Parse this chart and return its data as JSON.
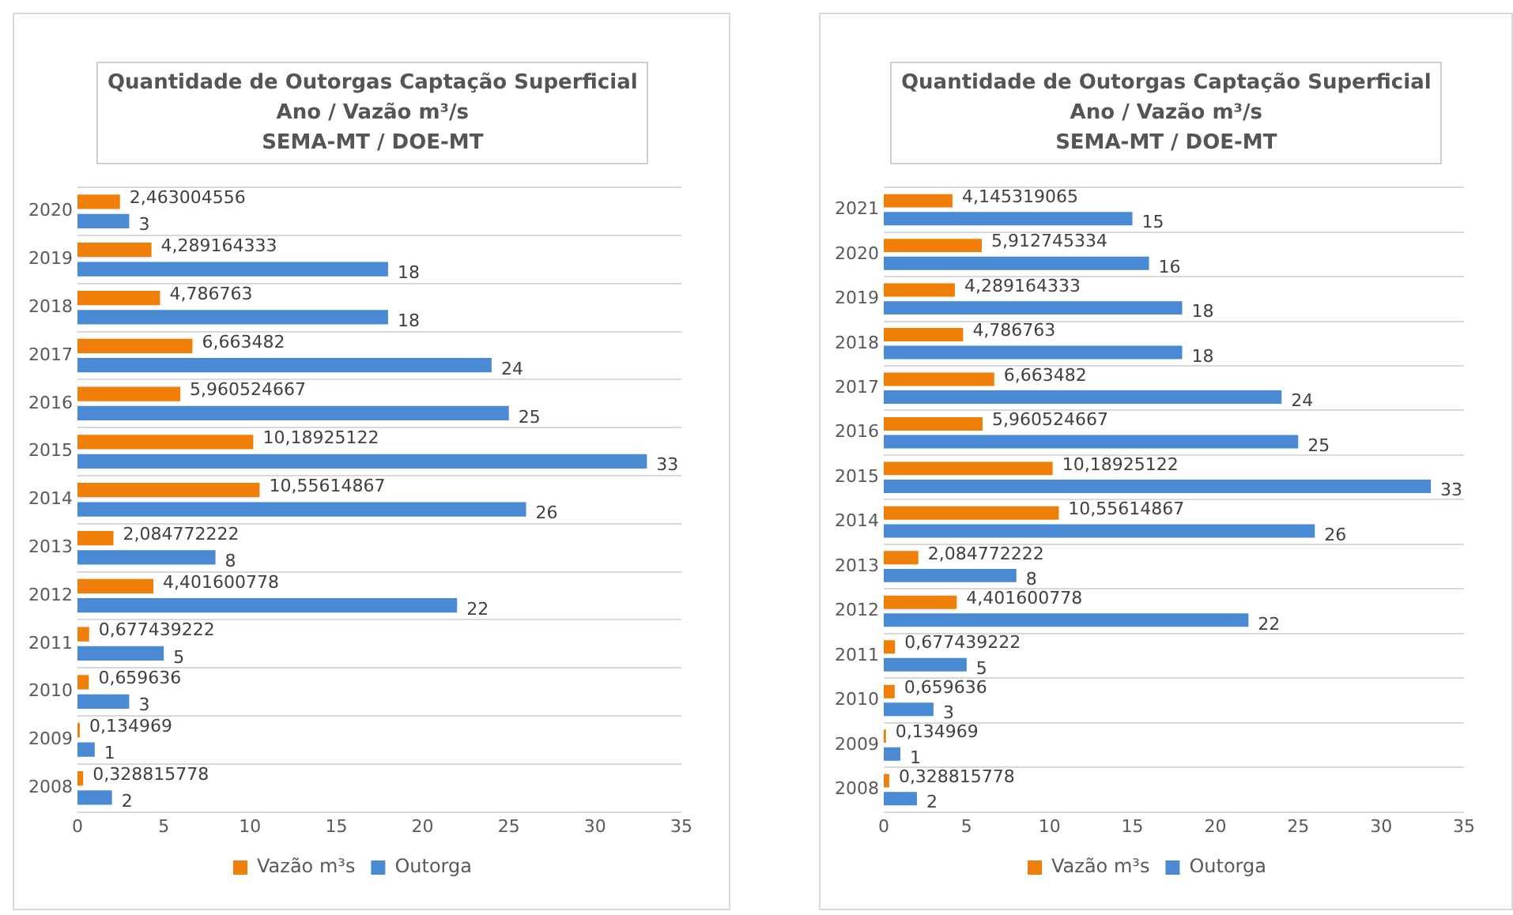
{
  "chart_data": [
    {
      "type": "bar",
      "orientation": "horizontal",
      "title": "Quantidade de Outorgas Captação Superficial\nAno / Vazão m³/s\nSEMA-MT / DOE-MT",
      "categories": [
        "2020",
        "2019",
        "2018",
        "2017",
        "2016",
        "2015",
        "2014",
        "2013",
        "2012",
        "2011",
        "2010",
        "2009",
        "2008"
      ],
      "series": [
        {
          "name": "Vazão m³s",
          "color": "#f07f09",
          "values": [
            2.463004556,
            4.289164333,
            4.786763,
            6.663482,
            5.960524667,
            10.18925122,
            10.55614867,
            2.084772222,
            4.401600778,
            0.677439222,
            0.659636,
            0.134969,
            0.328815778
          ],
          "value_labels": [
            "2,463004556",
            "4,289164333",
            "4,786763",
            "6,663482",
            "5,960524667",
            "10,18925122",
            "10,55614867",
            "2,084772222",
            "4,401600778",
            "0,677439222",
            "0,659636",
            "0,134969",
            "0,328815778"
          ]
        },
        {
          "name": "Outorga",
          "color": "#4a8ad4",
          "values": [
            3,
            18,
            18,
            24,
            25,
            33,
            26,
            8,
            22,
            5,
            3,
            1,
            2
          ],
          "value_labels": [
            "3",
            "18",
            "18",
            "24",
            "25",
            "33",
            "26",
            "8",
            "22",
            "5",
            "3",
            "1",
            "2"
          ]
        }
      ],
      "xlim": [
        0,
        35
      ],
      "xticks": [
        0,
        5,
        10,
        15,
        20,
        25,
        30,
        35
      ],
      "grid": "y",
      "legend": "bottom"
    },
    {
      "type": "bar",
      "orientation": "horizontal",
      "title": "Quantidade de Outorgas Captação Superficial\nAno / Vazão m³/s\nSEMA-MT / DOE-MT",
      "categories": [
        "2021",
        "2020",
        "2019",
        "2018",
        "2017",
        "2016",
        "2015",
        "2014",
        "2013",
        "2012",
        "2011",
        "2010",
        "2009",
        "2008"
      ],
      "series": [
        {
          "name": "Vazão m³s",
          "color": "#f07f09",
          "values": [
            4.145319065,
            5.912745334,
            4.289164333,
            4.786763,
            6.663482,
            5.960524667,
            10.18925122,
            10.55614867,
            2.084772222,
            4.401600778,
            0.677439222,
            0.659636,
            0.134969,
            0.328815778
          ],
          "value_labels": [
            "4,145319065",
            "5,912745334",
            "4,289164333",
            "4,786763",
            "6,663482",
            "5,960524667",
            "10,18925122",
            "10,55614867",
            "2,084772222",
            "4,401600778",
            "0,677439222",
            "0,659636",
            "0,134969",
            "0,328815778"
          ]
        },
        {
          "name": "Outorga",
          "color": "#4a8ad4",
          "values": [
            15,
            16,
            18,
            18,
            24,
            25,
            33,
            26,
            8,
            22,
            5,
            3,
            1,
            2
          ],
          "value_labels": [
            "15",
            "16",
            "18",
            "18",
            "24",
            "25",
            "33",
            "26",
            "8",
            "22",
            "5",
            "3",
            "1",
            "2"
          ]
        }
      ],
      "xlim": [
        0,
        35
      ],
      "xticks": [
        0,
        5,
        10,
        15,
        20,
        25,
        30,
        35
      ],
      "grid": "y",
      "legend": "bottom"
    }
  ]
}
